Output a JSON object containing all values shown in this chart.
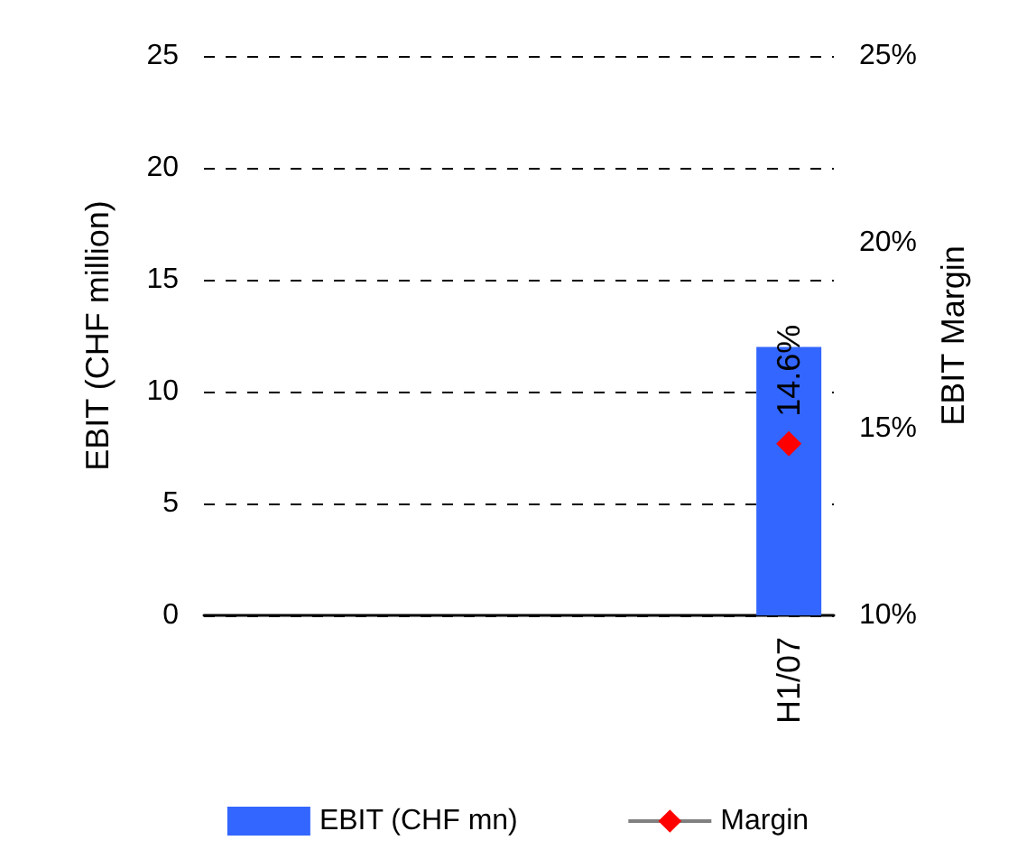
{
  "chart_data": {
    "type": "bar",
    "categories": [
      null,
      null,
      null,
      null,
      null,
      null,
      "H1/07"
    ],
    "ylabel": "EBIT (CHF million)",
    "y2label": "EBIT Margin",
    "ylim": [
      0,
      25
    ],
    "yticks": [
      0,
      5,
      10,
      15,
      20,
      25
    ],
    "y2lim": [
      10,
      25
    ],
    "y2ticks": [
      {
        "value": 10,
        "label": "10%"
      },
      {
        "value": 15,
        "label": "15%"
      },
      {
        "value": 20,
        "label": "20%"
      },
      {
        "value": 25,
        "label": "25%"
      }
    ],
    "grid": "y",
    "legend": "bottom",
    "series": [
      {
        "name": "EBIT (CHF mn)",
        "color": "#3366ff",
        "values": [
          null,
          null,
          null,
          null,
          null,
          null,
          12
        ]
      },
      {
        "name": "Margin",
        "type": "line",
        "axis": "y2",
        "color": "#ff0000",
        "marker": "diamond",
        "values": [
          null,
          null,
          null,
          null,
          null,
          null,
          14.6
        ],
        "value_labels": [
          null,
          null,
          null,
          null,
          null,
          null,
          "14.6%"
        ]
      }
    ]
  }
}
